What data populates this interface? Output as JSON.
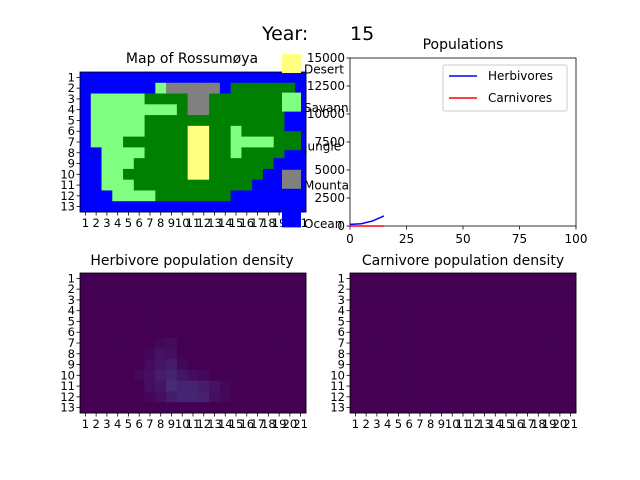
{
  "figure": {
    "year_label": "Year:",
    "year_value": "15"
  },
  "map": {
    "title": "Map of Rossumøya",
    "rows": [
      "OOOOOOOOOOOOOOOOOOOOO",
      "OOOOOOOSMMMMMOJJJJJJO",
      "OSSSSSJJJJMMJJJJJJJOO",
      "OSSSSSSSSJMMJJJJJJJOO",
      "OSSSSSJJJJJJJJJJJJJOO",
      "OSSSSSJJJJDDJJSJJJJOO",
      "OSSSJJJJJJDDJJSSSSJOO",
      "OOSSSSJJJJDDJJSJJJJOO",
      "OOSSSJJJJJDDJJJJJJOOO",
      "OOSSJJJJJJDDJJJJJOOOO",
      "OOSSSJJJJJJJJJJJOOOOO",
      "OOOSSSSJJJJJJJOOOOOOO",
      "OOOOOOOOOOOOOOOOOOOOO"
    ],
    "x_ticks": [
      "1",
      "2",
      "3",
      "4",
      "5",
      "6",
      "7",
      "8",
      "9",
      "10",
      "11",
      "12",
      "13",
      "14",
      "15",
      "16",
      "17",
      "18",
      "19",
      "20",
      "21"
    ],
    "y_ticks": [
      "1",
      "2",
      "3",
      "4",
      "5",
      "6",
      "7",
      "8",
      "9",
      "10",
      "11",
      "12",
      "13"
    ],
    "legend": [
      {
        "code": "D",
        "label": "Desert",
        "color": "#ffff80"
      },
      {
        "code": "S",
        "label": "Savannah",
        "color": "#80ff80"
      },
      {
        "code": "J",
        "label": "Jungle",
        "color": "#008000"
      },
      {
        "code": "M",
        "label": "Mountain",
        "color": "#808080"
      },
      {
        "code": "O",
        "label": "Ocean",
        "color": "#0000ff"
      }
    ]
  },
  "chart_data": [
    {
      "type": "line",
      "title": "Populations",
      "xlim": [
        0,
        100
      ],
      "ylim": [
        0,
        15000
      ],
      "x_ticks": [
        "0",
        "25",
        "50",
        "75",
        "100"
      ],
      "y_ticks": [
        {
          "value": 0,
          "label": "0"
        },
        {
          "value": 2500,
          "label": "2500"
        },
        {
          "value": 5000,
          "label": "5000"
        },
        {
          "value": 7500,
          "label": "7500"
        },
        {
          "value": 10000,
          "label": "10000"
        },
        {
          "value": 12500,
          "label": "12500"
        },
        {
          "value": 15000,
          "label": "15000"
        }
      ],
      "legend_position": "upper right",
      "series": [
        {
          "name": "Herbivores",
          "color": "#0000ff",
          "x": [
            0,
            5,
            10,
            15
          ],
          "values": [
            150,
            200,
            450,
            900
          ]
        },
        {
          "name": "Carnivores",
          "color": "#ff0000",
          "x": [
            0,
            5,
            10,
            15
          ],
          "values": [
            0,
            0,
            0,
            0
          ]
        }
      ]
    },
    {
      "type": "heatmap",
      "title": "Herbivore population density",
      "x_ticks": [
        "1",
        "2",
        "3",
        "4",
        "5",
        "6",
        "7",
        "8",
        "9",
        "10",
        "11",
        "12",
        "13",
        "14",
        "15",
        "16",
        "17",
        "18",
        "19",
        "20",
        "21"
      ],
      "y_ticks": [
        "1",
        "2",
        "3",
        "4",
        "5",
        "6",
        "7",
        "8",
        "9",
        "10",
        "11",
        "12",
        "13"
      ],
      "colormap": [
        "#440154",
        "#46337e",
        "#365c8d",
        "#277f8e",
        "#1fa187",
        "#4ac16d",
        "#a0da39",
        "#fde725"
      ],
      "values": [
        [
          0,
          0,
          0,
          0,
          0,
          0,
          0,
          0,
          0,
          0,
          0,
          0,
          0,
          0,
          0,
          0,
          0,
          0,
          0,
          0,
          0
        ],
        [
          0,
          0,
          0,
          0,
          0,
          0,
          0,
          0,
          0,
          0,
          0,
          0,
          0,
          0,
          0,
          0,
          0,
          0,
          0,
          0,
          0
        ],
        [
          0,
          0,
          0,
          0,
          0,
          0,
          0,
          0,
          0,
          0,
          0,
          0,
          0,
          0,
          0,
          0,
          0,
          0,
          0,
          0,
          0
        ],
        [
          0,
          0,
          0,
          0,
          0,
          0,
          0,
          0,
          0,
          0,
          0,
          0,
          0,
          0,
          0,
          0,
          0,
          0,
          0,
          0,
          0
        ],
        [
          0,
          0,
          0,
          0,
          0,
          0,
          0,
          0,
          0,
          0,
          0,
          0,
          0,
          0,
          0,
          0,
          0,
          0,
          0,
          0,
          0
        ],
        [
          0,
          0,
          0,
          0,
          0,
          0,
          0,
          0,
          0,
          0,
          0,
          0,
          0,
          0,
          0,
          0,
          0,
          0,
          0,
          0,
          0
        ],
        [
          0,
          0,
          0,
          0,
          0,
          0,
          0,
          0.02,
          0.03,
          0,
          0,
          0,
          0,
          0,
          0,
          0,
          0,
          0,
          0,
          0,
          0
        ],
        [
          0,
          0,
          0,
          0,
          0,
          0,
          0.02,
          0.05,
          0.04,
          0,
          0,
          0,
          0,
          0,
          0,
          0,
          0,
          0,
          0,
          0,
          0
        ],
        [
          0,
          0,
          0,
          0,
          0,
          0,
          0.03,
          0.06,
          0.08,
          0.02,
          0,
          0,
          0,
          0,
          0,
          0,
          0,
          0,
          0,
          0,
          0
        ],
        [
          0,
          0,
          0,
          0,
          0,
          0.02,
          0.04,
          0.08,
          0.1,
          0.06,
          0.03,
          0.02,
          0,
          0,
          0,
          0,
          0,
          0,
          0,
          0,
          0
        ],
        [
          0,
          0,
          0,
          0,
          0,
          0,
          0.04,
          0.06,
          0.12,
          0.1,
          0.1,
          0.08,
          0.05,
          0.02,
          0,
          0,
          0,
          0,
          0,
          0,
          0
        ],
        [
          0,
          0,
          0,
          0,
          0,
          0,
          0.02,
          0.04,
          0.08,
          0.1,
          0.1,
          0.09,
          0.04,
          0.02,
          0,
          0,
          0,
          0,
          0,
          0,
          0
        ],
        [
          0,
          0,
          0,
          0,
          0,
          0,
          0,
          0,
          0,
          0,
          0,
          0,
          0,
          0,
          0,
          0,
          0,
          0,
          0,
          0,
          0
        ]
      ]
    },
    {
      "type": "heatmap",
      "title": "Carnivore population density",
      "x_ticks": [
        "1",
        "2",
        "3",
        "4",
        "5",
        "6",
        "7",
        "8",
        "9",
        "10",
        "11",
        "12",
        "13",
        "14",
        "15",
        "16",
        "17",
        "18",
        "19",
        "20",
        "21"
      ],
      "y_ticks": [
        "1",
        "2",
        "3",
        "4",
        "5",
        "6",
        "7",
        "8",
        "9",
        "10",
        "11",
        "12",
        "13"
      ],
      "colormap": [
        "#440154",
        "#46337e",
        "#365c8d",
        "#277f8e",
        "#1fa187",
        "#4ac16d",
        "#a0da39",
        "#fde725"
      ],
      "values": [
        [
          0,
          0,
          0,
          0,
          0,
          0,
          0,
          0,
          0,
          0,
          0,
          0,
          0,
          0,
          0,
          0,
          0,
          0,
          0,
          0,
          0
        ],
        [
          0,
          0,
          0,
          0,
          0,
          0,
          0,
          0,
          0,
          0,
          0,
          0,
          0,
          0,
          0,
          0,
          0,
          0,
          0,
          0,
          0
        ],
        [
          0,
          0,
          0,
          0,
          0,
          0,
          0,
          0,
          0,
          0,
          0,
          0,
          0,
          0,
          0,
          0,
          0,
          0,
          0,
          0,
          0
        ],
        [
          0,
          0,
          0,
          0,
          0,
          0,
          0,
          0,
          0,
          0,
          0,
          0,
          0,
          0,
          0,
          0,
          0,
          0,
          0,
          0,
          0
        ],
        [
          0,
          0,
          0,
          0,
          0,
          0,
          0,
          0,
          0,
          0,
          0,
          0,
          0,
          0,
          0,
          0,
          0,
          0,
          0,
          0,
          0
        ],
        [
          0,
          0,
          0,
          0,
          0,
          0,
          0,
          0,
          0,
          0,
          0,
          0,
          0,
          0,
          0,
          0,
          0,
          0,
          0,
          0,
          0
        ],
        [
          0,
          0,
          0,
          0,
          0,
          0,
          0,
          0,
          0,
          0,
          0,
          0,
          0,
          0,
          0,
          0,
          0,
          0,
          0,
          0,
          0
        ],
        [
          0,
          0,
          0,
          0,
          0,
          0,
          0,
          0,
          0,
          0,
          0,
          0,
          0,
          0,
          0,
          0,
          0,
          0,
          0,
          0,
          0
        ],
        [
          0,
          0,
          0,
          0,
          0,
          0,
          0,
          0,
          0,
          0,
          0,
          0,
          0,
          0,
          0,
          0,
          0,
          0,
          0,
          0,
          0
        ],
        [
          0,
          0,
          0,
          0,
          0,
          0,
          0,
          0,
          0,
          0,
          0,
          0,
          0,
          0,
          0,
          0,
          0,
          0,
          0,
          0,
          0
        ],
        [
          0,
          0,
          0,
          0,
          0,
          0,
          0,
          0,
          0,
          0,
          0,
          0,
          0,
          0,
          0,
          0,
          0,
          0,
          0,
          0,
          0
        ],
        [
          0,
          0,
          0,
          0,
          0,
          0,
          0,
          0,
          0,
          0,
          0,
          0,
          0,
          0,
          0,
          0,
          0,
          0,
          0,
          0,
          0
        ],
        [
          0,
          0,
          0,
          0,
          0,
          0,
          0,
          0,
          0,
          0,
          0,
          0,
          0,
          0,
          0,
          0,
          0,
          0,
          0,
          0,
          0
        ]
      ]
    }
  ]
}
